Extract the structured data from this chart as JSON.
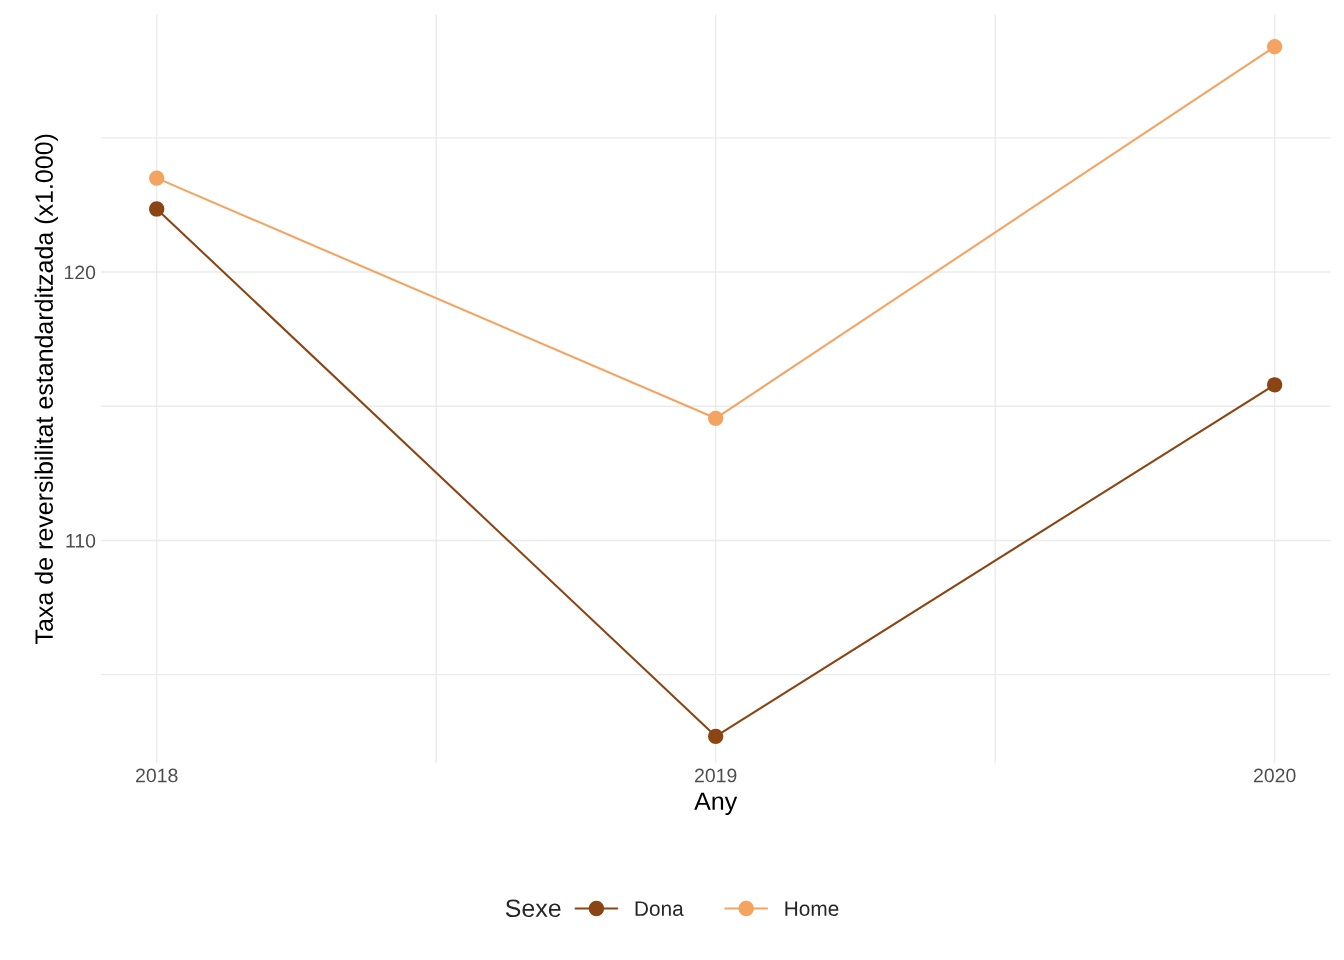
{
  "chart_data": {
    "type": "line",
    "xlabel": "Any",
    "ylabel": "Taxa de reversibilitat estandarditzada (x1.000)",
    "legend_title": "Sexe",
    "x": [
      2018,
      2019,
      2020
    ],
    "series": [
      {
        "name": "Dona",
        "color": "#8b4513",
        "values": [
          122.35,
          102.7,
          115.8
        ]
      },
      {
        "name": "Home",
        "color": "#f4a460",
        "values": [
          123.5,
          114.55,
          128.4
        ]
      }
    ],
    "xlim": [
      2017.9,
      2020.1
    ],
    "xticks": [
      2018,
      {
        "value": 2018.5,
        "label": null
      },
      2019,
      {
        "value": 2019.5,
        "label": null
      },
      2020
    ],
    "ylim": [
      101.7,
      129.6
    ],
    "yticks": [
      {
        "value": 105,
        "label": null
      },
      110,
      {
        "value": 115,
        "label": null
      },
      120,
      {
        "value": 125,
        "label": null
      }
    ],
    "grid": true,
    "legend": "bottom",
    "marker": "circle",
    "line_style": "solid"
  }
}
